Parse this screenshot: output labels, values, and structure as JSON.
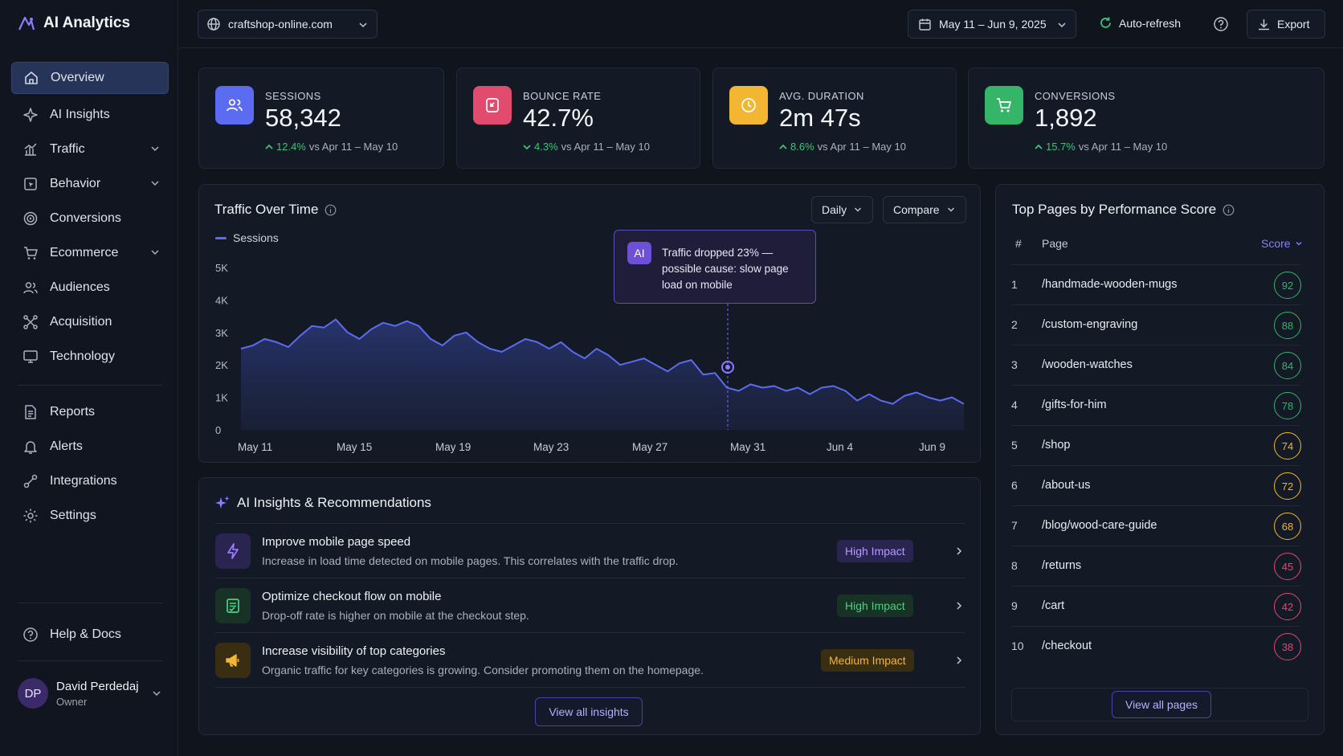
{
  "app": {
    "name": "AI Analytics"
  },
  "sidebar": {
    "items": [
      {
        "label": "Overview",
        "icon": "home-icon",
        "active": true
      },
      {
        "label": "AI Insights",
        "icon": "sparkle-icon"
      },
      {
        "label": "Traffic",
        "icon": "bar-chart-icon",
        "expandable": true
      },
      {
        "label": "Behavior",
        "icon": "cursor-icon",
        "expandable": true
      },
      {
        "label": "Conversions",
        "icon": "target-icon"
      },
      {
        "label": "Ecommerce",
        "icon": "cart-icon",
        "expandable": true
      },
      {
        "label": "Audiences",
        "icon": "users-icon"
      },
      {
        "label": "Acquisition",
        "icon": "share-icon"
      },
      {
        "label": "Technology",
        "icon": "monitor-icon"
      },
      {
        "label": "Reports",
        "icon": "file-icon"
      },
      {
        "label": "Alerts",
        "icon": "bell-icon"
      },
      {
        "label": "Integrations",
        "icon": "link-icon"
      },
      {
        "label": "Settings",
        "icon": "gear-icon"
      }
    ],
    "help": "Help & Docs",
    "user": {
      "initials": "DP",
      "name": "David Perdedaj",
      "role": "Owner"
    }
  },
  "topbar": {
    "site": "craftshop-online.com",
    "date_range": "May 11 – Jun 9, 2025",
    "auto_refresh": "Auto-refresh",
    "export": "Export"
  },
  "kpis": [
    {
      "label": "SESSIONS",
      "value": "58,342",
      "delta": "12.4%",
      "direction": "up",
      "compare": "vs Apr 11 – May 10",
      "color": "#5b6cf0",
      "icon": "users-icon"
    },
    {
      "label": "BOUNCE RATE",
      "value": "42.7%",
      "delta": "4.3%",
      "direction": "down",
      "compare": "vs Apr 11 – May 10",
      "color": "#e04b6e",
      "icon": "bounce-icon"
    },
    {
      "label": "AVG. DURATION",
      "value": "2m 47s",
      "delta": "8.6%",
      "direction": "up",
      "compare": "vs Apr 11 – May 10",
      "color": "#f2b632",
      "icon": "clock-icon"
    },
    {
      "label": "CONVERSIONS",
      "value": "1,892",
      "delta": "15.7%",
      "direction": "up",
      "compare": "vs Apr 11 – May 10",
      "color": "#34b567",
      "icon": "cart-icon"
    }
  ],
  "traffic": {
    "title": "Traffic Over Time",
    "granularity": "Daily",
    "compare": "Compare",
    "tooltip": {
      "badge": "AI",
      "text": "Traffic dropped 23% — possible cause: slow page load on mobile"
    }
  },
  "chart_data": {
    "type": "area",
    "title": "Traffic Over Time",
    "series": [
      {
        "name": "Sessions",
        "color": "#5b6cf0",
        "values": [
          2500,
          2600,
          2800,
          2700,
          2550,
          2900,
          3200,
          3150,
          3400,
          3000,
          2800,
          3100,
          3300,
          3200,
          3350,
          3200,
          2800,
          2600,
          2900,
          3000,
          2700,
          2500,
          2400,
          2600,
          2800,
          2700,
          2500,
          2700,
          2400,
          2200,
          2500,
          2300,
          2000,
          2100,
          2200,
          2000,
          1800,
          2050,
          2150,
          1700,
          1750,
          1300,
          1200,
          1400,
          1300,
          1350,
          1200,
          1300,
          1100,
          1300,
          1350,
          1200,
          900,
          1100,
          900,
          800,
          1050,
          1150,
          1000,
          900,
          1000,
          800
        ]
      }
    ],
    "x_labels": [
      "May 11",
      "May 15",
      "May 19",
      "May 23",
      "May 27",
      "May 31",
      "Jun 4",
      "Jun 9"
    ],
    "y_ticks": [
      "0",
      "1K",
      "2K",
      "3K",
      "4K",
      "5K"
    ],
    "ylim": [
      0,
      5000
    ],
    "annotation": {
      "x_label": "May 30",
      "value": 1930
    },
    "grid": false,
    "legend": "top-left"
  },
  "insights": {
    "title": "AI Insights & Recommendations",
    "items": [
      {
        "title": "Improve mobile page speed",
        "desc": "Increase in load time detected on mobile pages. This correlates with the traffic drop.",
        "impact": "High Impact",
        "impact_color": "#b29bff",
        "impact_bg": "#2a2550",
        "icon": "lightning-icon",
        "icon_bg": "#2a2550",
        "icon_color": "#9b7bff"
      },
      {
        "title": "Optimize checkout flow on mobile",
        "desc": "Drop-off rate is higher on mobile at the checkout step.",
        "impact": "High Impact",
        "impact_color": "#4ccf86",
        "impact_bg": "#183226",
        "icon": "checklist-icon",
        "icon_bg": "#183226",
        "icon_color": "#4ccf86"
      },
      {
        "title": "Increase visibility of top categories",
        "desc": "Organic traffic for key categories is growing. Consider promoting them on the homepage.",
        "impact": "Medium Impact",
        "impact_color": "#f2b632",
        "impact_bg": "#3a2e12",
        "icon": "megaphone-icon",
        "icon_bg": "#3a2e12",
        "icon_color": "#f2b632"
      }
    ],
    "view_all": "View all insights"
  },
  "top_pages": {
    "title": "Top Pages by Performance Score",
    "headers": {
      "num": "#",
      "page": "Page",
      "score": "Score"
    },
    "rows": [
      {
        "num": "1",
        "page": "/handmade-wooden-mugs",
        "score": "92",
        "color": "#34b567"
      },
      {
        "num": "2",
        "page": "/custom-engraving",
        "score": "88",
        "color": "#34b567"
      },
      {
        "num": "3",
        "page": "/wooden-watches",
        "score": "84",
        "color": "#34b567"
      },
      {
        "num": "4",
        "page": "/gifts-for-him",
        "score": "78",
        "color": "#34b567"
      },
      {
        "num": "5",
        "page": "/shop",
        "score": "74",
        "color": "#f2b632"
      },
      {
        "num": "6",
        "page": "/about-us",
        "score": "72",
        "color": "#f2b632"
      },
      {
        "num": "7",
        "page": "/blog/wood-care-guide",
        "score": "68",
        "color": "#f2b632"
      },
      {
        "num": "8",
        "page": "/returns",
        "score": "45",
        "color": "#e04b6e"
      },
      {
        "num": "9",
        "page": "/cart",
        "score": "42",
        "color": "#e04b6e"
      },
      {
        "num": "10",
        "page": "/checkout",
        "score": "38",
        "color": "#e04b6e"
      }
    ],
    "view_all": "View all pages"
  }
}
